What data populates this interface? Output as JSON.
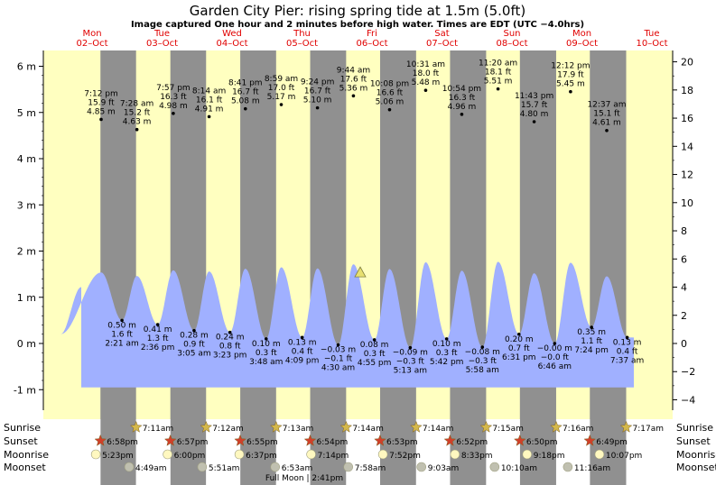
{
  "title": "Garden City Pier: rising  spring tide at 1.5m (5.0ft)",
  "subtitle": "Image captured One hour and 2 minutes before high water. Times are EDT (UTC −4.0hrs)",
  "colors": {
    "day_bg": "#ffffc0",
    "night_bg": "#909090",
    "tide_fill": "#a0b0ff",
    "day_label": "#e00000",
    "sun_star": "#d4b84a",
    "sunset_star": "#d0402a",
    "moonrise": "#fff8c0",
    "moonset": "#c0c0b0"
  },
  "chart_data": {
    "type": "area",
    "title": "Garden City Pier: rising  spring tide at 1.5m (5.0ft)",
    "y_left_unit": "m",
    "y_left_ticks": [
      "-1 m",
      "0 m",
      "1 m",
      "2 m",
      "3 m",
      "4 m",
      "5 m",
      "6 m"
    ],
    "y_right_ticks": [
      "−4 ft",
      "−2 ft",
      "0 ft",
      "2 ft",
      "4 ft",
      "6 ft",
      "8 ft",
      "10 ft",
      "12 ft",
      "14 ft",
      "16 ft",
      "18 ft",
      "20 ft"
    ],
    "ylim_m": [
      -1.0,
      6.5
    ],
    "days": [
      {
        "dow": "Mon",
        "date": "02–Oct"
      },
      {
        "dow": "Tue",
        "date": "03–Oct"
      },
      {
        "dow": "Wed",
        "date": "04–Oct"
      },
      {
        "dow": "Thu",
        "date": "05–Oct"
      },
      {
        "dow": "Fri",
        "date": "06–Oct"
      },
      {
        "dow": "Sat",
        "date": "07–Oct"
      },
      {
        "dow": "Sun",
        "date": "08–Oct"
      },
      {
        "dow": "Mon",
        "date": "09–Oct"
      },
      {
        "dow": "Tue",
        "date": "10–Oct"
      }
    ],
    "current_tide": {
      "level_m": 1.5,
      "level_ft": 5.0,
      "state": "rising"
    },
    "tides": [
      {
        "type": "high",
        "time": "7:12 pm",
        "day": "02–Oct",
        "ft": "15.9 ft",
        "m": "4.85 m",
        "value_m": 4.85
      },
      {
        "type": "low",
        "time": "2:21 am",
        "day": "03–Oct",
        "ft": "1.6 ft",
        "m": "0.50 m",
        "value_m": 0.5
      },
      {
        "type": "high",
        "time": "7:28 am",
        "day": "03–Oct",
        "ft": "15.2 ft",
        "m": "4.63 m",
        "value_m": 4.63
      },
      {
        "type": "low",
        "time": "2:36 pm",
        "day": "03–Oct",
        "ft": "1.3 ft",
        "m": "0.41 m",
        "value_m": 0.41
      },
      {
        "type": "high",
        "time": "7:57 pm",
        "day": "03–Oct",
        "ft": "16.3 ft",
        "m": "4.98 m",
        "value_m": 4.98
      },
      {
        "type": "low",
        "time": "3:05 am",
        "day": "04–Oct",
        "ft": "0.9 ft",
        "m": "0.28 m",
        "value_m": 0.28
      },
      {
        "type": "high",
        "time": "8:14 am",
        "day": "04–Oct",
        "ft": "16.1 ft",
        "m": "4.91 m",
        "value_m": 4.91
      },
      {
        "type": "low",
        "time": "3:23 pm",
        "day": "04–Oct",
        "ft": "0.8 ft",
        "m": "0.24 m",
        "value_m": 0.24
      },
      {
        "type": "high",
        "time": "8:41 pm",
        "day": "04–Oct",
        "ft": "16.7 ft",
        "m": "5.08 m",
        "value_m": 5.08
      },
      {
        "type": "low",
        "time": "3:48 am",
        "day": "05–Oct",
        "ft": "0.3 ft",
        "m": "0.10 m",
        "value_m": 0.1
      },
      {
        "type": "high",
        "time": "8:59 am",
        "day": "05–Oct",
        "ft": "17.0 ft",
        "m": "5.17 m",
        "value_m": 5.17
      },
      {
        "type": "low",
        "time": "4:09 pm",
        "day": "05–Oct",
        "ft": "0.4 ft",
        "m": "0.13 m",
        "value_m": 0.13
      },
      {
        "type": "high",
        "time": "9:24 pm",
        "day": "05–Oct",
        "ft": "16.7 ft",
        "m": "5.10 m",
        "value_m": 5.1
      },
      {
        "type": "low",
        "time": "4:30 am",
        "day": "06–Oct",
        "ft": "−0.1 ft",
        "m": "−0.03 m",
        "value_m": -0.03
      },
      {
        "type": "high",
        "time": "9:44 am",
        "day": "06–Oct",
        "ft": "17.6 ft",
        "m": "5.36 m",
        "value_m": 5.36
      },
      {
        "type": "low",
        "time": "4:55 pm",
        "day": "06–Oct",
        "ft": "0.3 ft",
        "m": "0.08 m",
        "value_m": 0.08
      },
      {
        "type": "high",
        "time": "10:08 pm",
        "day": "06–Oct",
        "ft": "16.6 ft",
        "m": "5.06 m",
        "value_m": 5.06
      },
      {
        "type": "low",
        "time": "5:13 am",
        "day": "07–Oct",
        "ft": "−0.3 ft",
        "m": "−0.09 m",
        "value_m": -0.09
      },
      {
        "type": "high",
        "time": "10:31 am",
        "day": "07–Oct",
        "ft": "18.0 ft",
        "m": "5.48 m",
        "value_m": 5.48
      },
      {
        "type": "low",
        "time": "5:42 pm",
        "day": "07–Oct",
        "ft": "0.3 ft",
        "m": "0.10 m",
        "value_m": 0.1
      },
      {
        "type": "high",
        "time": "10:54 pm",
        "day": "07–Oct",
        "ft": "16.3 ft",
        "m": "4.96 m",
        "value_m": 4.96
      },
      {
        "type": "low",
        "time": "5:58 am",
        "day": "08–Oct",
        "ft": "−0.3 ft",
        "m": "−0.08 m",
        "value_m": -0.08
      },
      {
        "type": "high",
        "time": "11:20 am",
        "day": "08–Oct",
        "ft": "18.1 ft",
        "m": "5.51 m",
        "value_m": 5.51
      },
      {
        "type": "low",
        "time": "6:31 pm",
        "day": "08–Oct",
        "ft": "0.7 ft",
        "m": "0.20 m",
        "value_m": 0.2
      },
      {
        "type": "high",
        "time": "11:43 pm",
        "day": "08–Oct",
        "ft": "15.7 ft",
        "m": "4.80 m",
        "value_m": 4.8
      },
      {
        "type": "low",
        "time": "6:46 am",
        "day": "09–Oct",
        "ft": "−0.0 ft",
        "m": "−0.00 m",
        "value_m": -0.0
      },
      {
        "type": "high",
        "time": "12:12 pm",
        "day": "09–Oct",
        "ft": "17.9 ft",
        "m": "5.45 m",
        "value_m": 5.45
      },
      {
        "type": "low",
        "time": "7:24 pm",
        "day": "09–Oct",
        "ft": "1.1 ft",
        "m": "0.35 m",
        "value_m": 0.35
      },
      {
        "type": "high",
        "time": "12:37 am",
        "day": "10–Oct",
        "ft": "15.1 ft",
        "m": "4.61 m",
        "value_m": 4.61
      },
      {
        "type": "low",
        "time": "7:37 am",
        "day": "10–Oct",
        "ft": "0.4 ft",
        "m": "0.13 m",
        "value_m": 0.13
      }
    ],
    "rows": [
      {
        "label": "Sunrise",
        "kind": "sunrise",
        "times": [
          "7:11am",
          "7:12am",
          "7:13am",
          "7:14am",
          "7:14am",
          "7:15am",
          "7:16am",
          "7:17am"
        ]
      },
      {
        "label": "Sunset",
        "kind": "sunset",
        "times": [
          "6:58pm",
          "6:57pm",
          "6:55pm",
          "6:54pm",
          "6:53pm",
          "6:52pm",
          "6:50pm",
          "6:49pm"
        ]
      },
      {
        "label": "Moonrise",
        "kind": "moonrise",
        "times": [
          "5:23pm",
          "6:00pm",
          "6:37pm",
          "7:14pm",
          "7:52pm",
          "8:33pm",
          "9:18pm",
          "10:07pm"
        ]
      },
      {
        "label": "Moonset",
        "kind": "moonset",
        "times": [
          "4:49am",
          "5:51am",
          "6:53am",
          "7:58am",
          "9:03am",
          "10:10am",
          "11:16am"
        ]
      }
    ],
    "full_moon": "Full Moon | 2:41pm"
  }
}
